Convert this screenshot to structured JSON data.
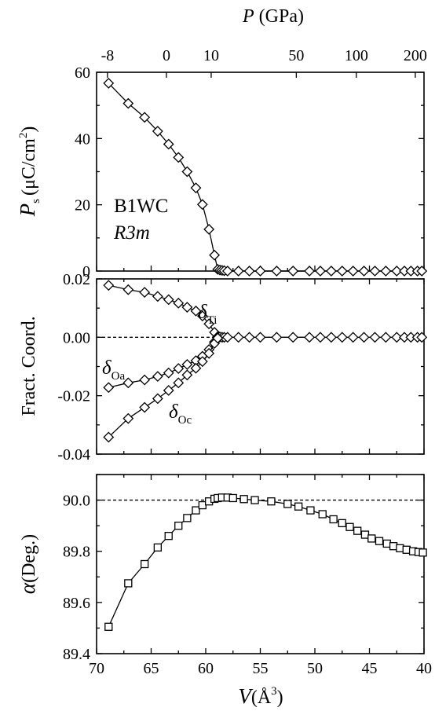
{
  "chart_data": [
    {
      "panel": "top",
      "type": "line",
      "top_axis": {
        "label_italic": "P",
        "label_unit": " (GPa)",
        "ticks": [
          "-8",
          "0",
          "10",
          "50",
          "100",
          "200"
        ],
        "tick_at_V": [
          69,
          63.6,
          59.5,
          51.7,
          46.2,
          40.8
        ]
      },
      "ylabel": {
        "main": "P",
        "sub": "s",
        "unit": "(μC/cm",
        "sup": "2",
        "close": ")"
      },
      "ylim": [
        0,
        60
      ],
      "yticks": [
        "0",
        "20",
        "40",
        "60"
      ],
      "xlim": [
        70,
        40
      ],
      "annotation": [
        "B1WC",
        "R3m"
      ],
      "series": [
        {
          "marker": "diamond",
          "x": [
            68.9,
            67.1,
            65.6,
            64.4,
            63.4,
            62.5,
            61.7,
            60.9,
            60.3,
            59.7,
            59.2,
            58.9,
            58.7,
            58.5,
            58.3,
            58.0,
            57.0,
            56.0,
            55.0,
            53.5,
            52.0,
            50.5,
            49.5,
            48.5,
            47.5,
            46.5,
            45.5,
            44.5,
            43.5,
            42.5,
            41.8,
            41.2,
            40.6,
            40.2
          ],
          "y": [
            56.7,
            50.6,
            46.4,
            42.2,
            38.3,
            34.3,
            30.0,
            25.1,
            20.1,
            12.6,
            4.8,
            0.5,
            0.3,
            0.2,
            0.1,
            0,
            0,
            0,
            0,
            0,
            0,
            0,
            0,
            0,
            0,
            0,
            0,
            0,
            0,
            0,
            0,
            0,
            0,
            0
          ]
        }
      ]
    },
    {
      "panel": "middle",
      "type": "line",
      "ylabel": "Fract. Coord.",
      "ylim": [
        -0.04,
        0.02
      ],
      "yticks": [
        "-0.04",
        "-0.02",
        "0.00",
        "0.02"
      ],
      "xlim": [
        70,
        40
      ],
      "reference_line": 0,
      "series": [
        {
          "name": "δ Ti",
          "label_main": "δ",
          "label_sub": "Ti",
          "marker": "diamond",
          "x": [
            68.9,
            67.1,
            65.6,
            64.4,
            63.4,
            62.5,
            61.7,
            60.9,
            60.3,
            59.7,
            59.2,
            58.9,
            58.7,
            58.5,
            58.3,
            58.0,
            57.0,
            56.0,
            55.0,
            53.5,
            52.0,
            50.5,
            49.5,
            48.5,
            47.5,
            46.5,
            45.5,
            44.5,
            43.5,
            42.5,
            41.8,
            41.2,
            40.6,
            40.2
          ],
          "y": [
            0.0178,
            0.0163,
            0.0154,
            0.014,
            0.0129,
            0.0117,
            0.0103,
            0.009,
            0.0073,
            0.0046,
            0.0017,
            0.0002,
            0.0001,
            0,
            0,
            0,
            0,
            0,
            0,
            0,
            0,
            0,
            0,
            0,
            0,
            0,
            0,
            0,
            0,
            0,
            0,
            0,
            0,
            0
          ]
        },
        {
          "name": "δ Oa",
          "label_main": "δ",
          "label_sub": "Oa",
          "marker": "diamond",
          "x": [
            68.9,
            67.1,
            65.6,
            64.4,
            63.4,
            62.5,
            61.7,
            60.9,
            60.3,
            59.7,
            59.2,
            58.9
          ],
          "y": [
            -0.0172,
            -0.0156,
            -0.0146,
            -0.0134,
            -0.0122,
            -0.0107,
            -0.0093,
            -0.008,
            -0.0065,
            -0.0042,
            -0.0016,
            -0.0002
          ]
        },
        {
          "name": "δ Oc",
          "label_main": "δ",
          "label_sub": "Oc",
          "marker": "diamond",
          "x": [
            68.9,
            67.1,
            65.6,
            64.4,
            63.4,
            62.5,
            61.7,
            60.9,
            60.3,
            59.7,
            59.2,
            58.9
          ],
          "y": [
            -0.0342,
            -0.0278,
            -0.024,
            -0.021,
            -0.0182,
            -0.0156,
            -0.0129,
            -0.0106,
            -0.0083,
            -0.0055,
            -0.0021,
            -0.0003
          ]
        }
      ]
    },
    {
      "panel": "bottom",
      "type": "line",
      "xlabel": {
        "main": "V",
        "unit": "(Å",
        "sup": "3",
        "close": ")"
      },
      "ylabel": {
        "main": "α",
        "unit": "(Deg.)"
      },
      "ylim": [
        89.4,
        90.1
      ],
      "yticks": [
        "89.4",
        "89.6",
        "89.8",
        "90.0"
      ],
      "xlim": [
        70,
        40
      ],
      "xticks": [
        "70",
        "65",
        "60",
        "55",
        "50",
        "45",
        "40"
      ],
      "reference_line": 90.0,
      "series": [
        {
          "marker": "square",
          "x": [
            68.9,
            67.1,
            65.6,
            64.4,
            63.4,
            62.5,
            61.7,
            60.9,
            60.3,
            59.7,
            59.2,
            58.9,
            58.5,
            58.0,
            57.5,
            56.5,
            55.5,
            54.0,
            52.5,
            51.5,
            50.4,
            49.3,
            48.3,
            47.5,
            46.8,
            46.1,
            45.4,
            44.8,
            44.1,
            43.4,
            42.8,
            42.2,
            41.6,
            41.0,
            40.5,
            40.1
          ],
          "y": [
            89.505,
            89.675,
            89.75,
            89.815,
            89.86,
            89.9,
            89.93,
            89.96,
            89.98,
            89.995,
            90.005,
            90.008,
            90.01,
            90.01,
            90.008,
            90.004,
            90.0,
            89.995,
            89.985,
            89.975,
            89.96,
            89.945,
            89.925,
            89.91,
            89.895,
            89.88,
            89.865,
            89.85,
            89.84,
            89.83,
            89.82,
            89.812,
            89.806,
            89.8,
            89.797,
            89.795
          ]
        }
      ]
    }
  ]
}
